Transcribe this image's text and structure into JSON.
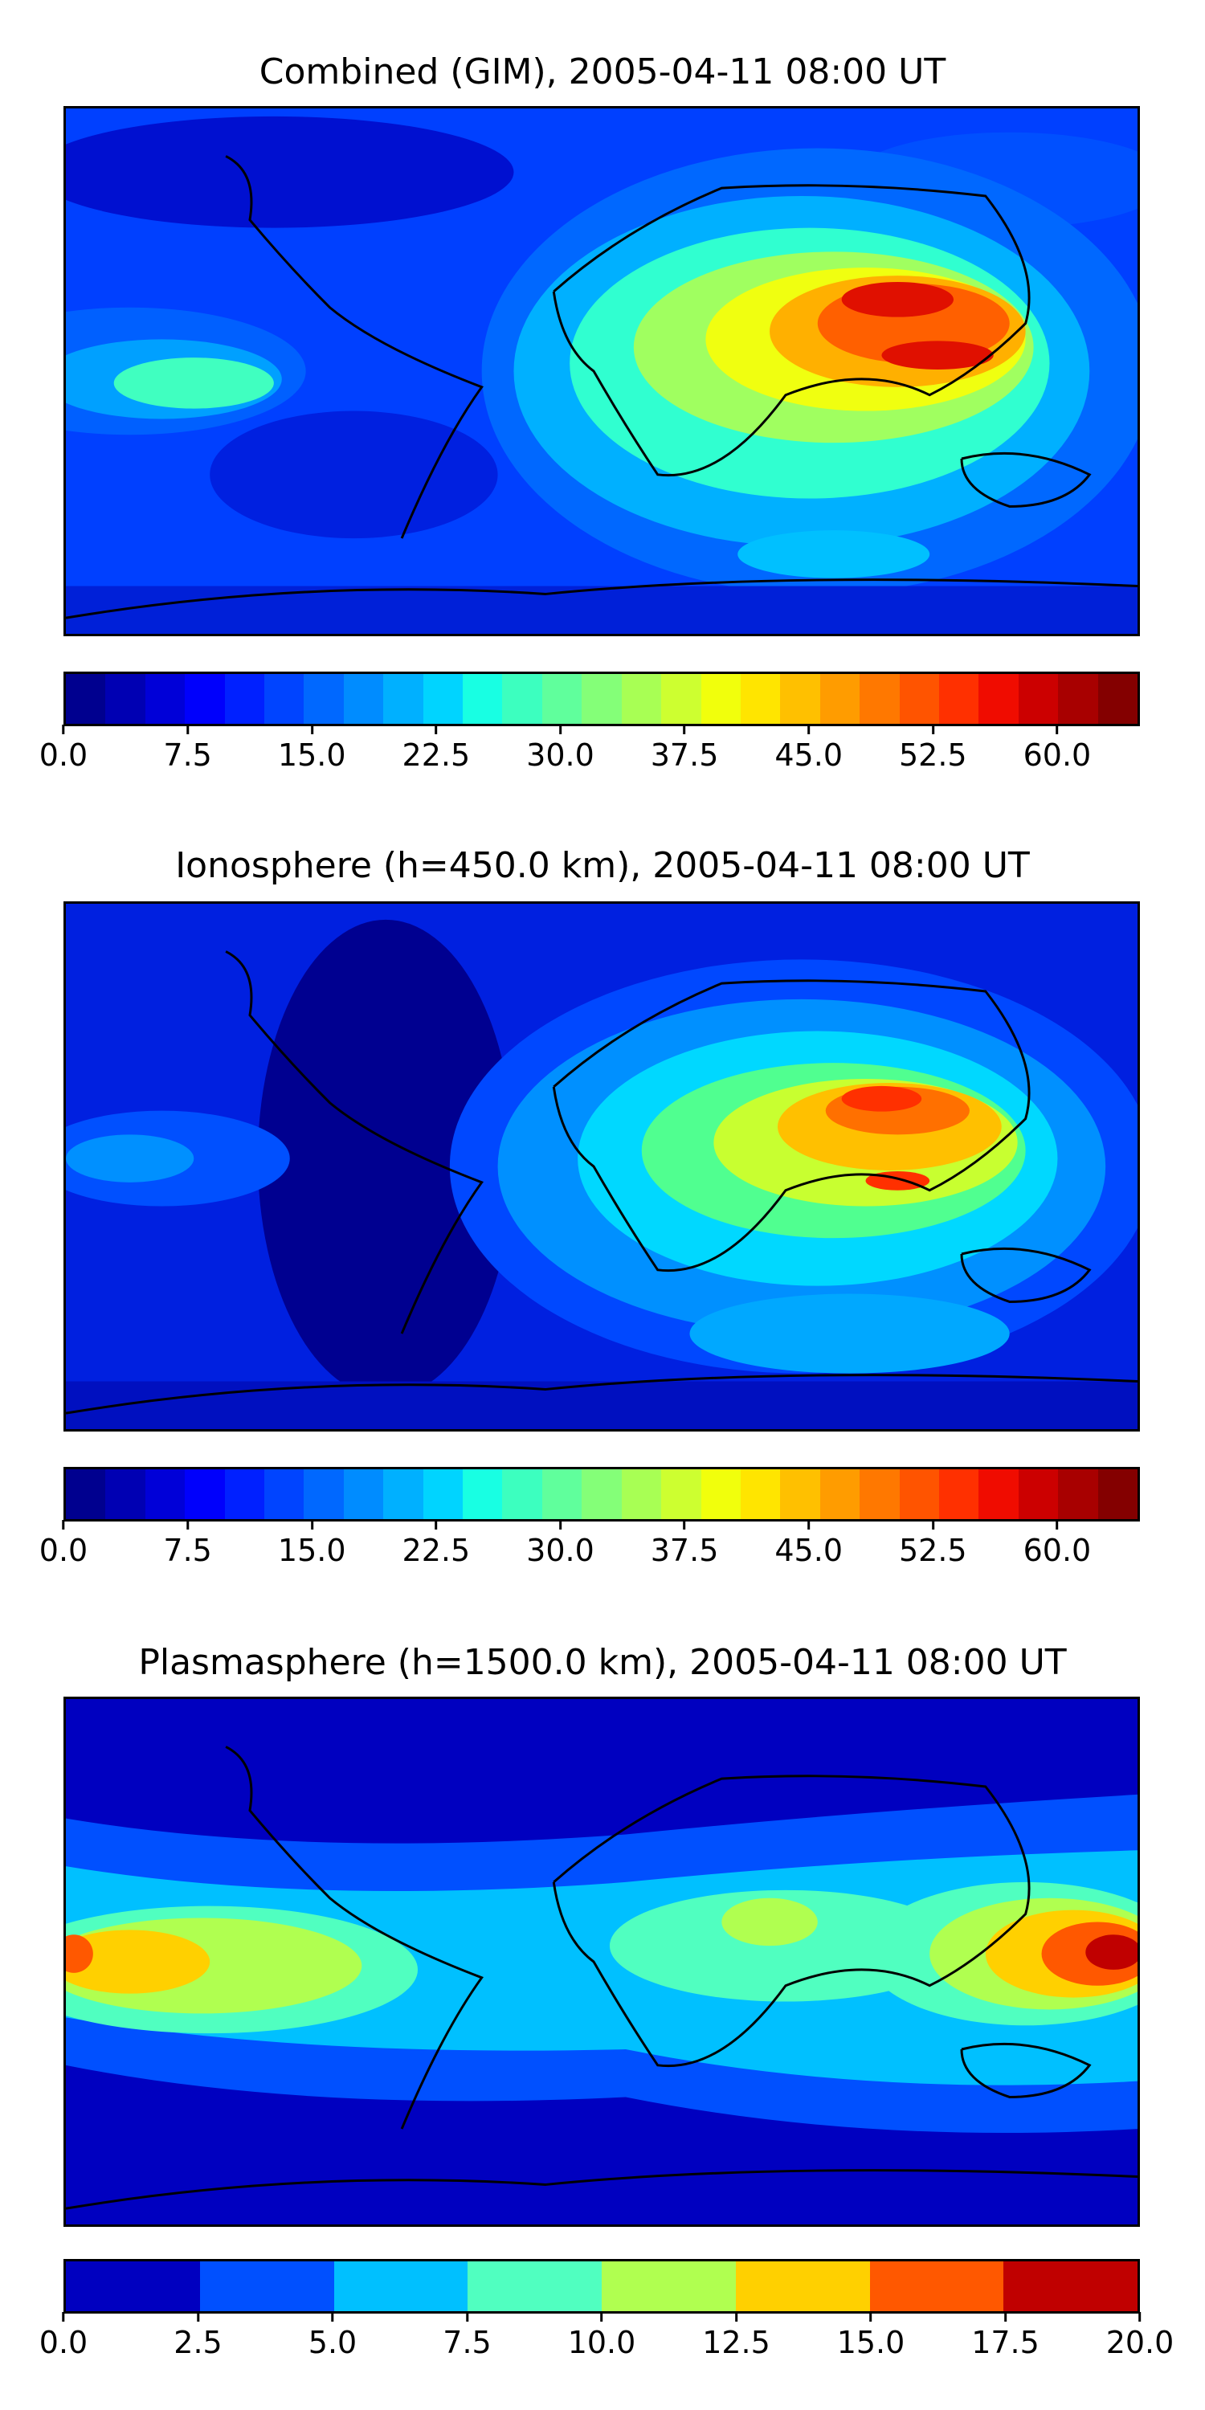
{
  "panels": [
    {
      "title": "Combined (GIM), 2005-04-11 08:00 UT",
      "colors": [
        "#00008f",
        "#0000b3",
        "#0000d8",
        "#0000fc",
        "#0020ff",
        "#0044ff",
        "#0068ff",
        "#008cff",
        "#00b0ff",
        "#00d4ff",
        "#18ffe3",
        "#3cffbf",
        "#60ff9c",
        "#84ff78",
        "#a8ff54",
        "#cdff30",
        "#f1ff0c",
        "#ffe500",
        "#ffc000",
        "#ff9c00",
        "#ff7800",
        "#ff5400",
        "#ff3000",
        "#f00c00",
        "#cc0000",
        "#a80000",
        "#840000"
      ],
      "ticks": [
        "0.0",
        "7.5",
        "15.0",
        "22.5",
        "30.0",
        "37.5",
        "45.0",
        "52.5",
        "60.0"
      ],
      "tick_values": [
        0,
        7.5,
        15,
        22.5,
        30,
        37.5,
        45,
        52.5,
        60
      ],
      "range": [
        0,
        65
      ]
    },
    {
      "title": "Ionosphere  (h=450.0 km), 2005-04-11 08:00 UT",
      "colors": [
        "#00008f",
        "#0000b3",
        "#0000d8",
        "#0000fc",
        "#0020ff",
        "#0044ff",
        "#0068ff",
        "#008cff",
        "#00b0ff",
        "#00d4ff",
        "#18ffe3",
        "#3cffbf",
        "#60ff9c",
        "#84ff78",
        "#a8ff54",
        "#cdff30",
        "#f1ff0c",
        "#ffe500",
        "#ffc000",
        "#ff9c00",
        "#ff7800",
        "#ff5400",
        "#ff3000",
        "#f00c00",
        "#cc0000",
        "#a80000",
        "#840000"
      ],
      "ticks": [
        "0.0",
        "7.5",
        "15.0",
        "22.5",
        "30.0",
        "37.5",
        "45.0",
        "52.5",
        "60.0"
      ],
      "tick_values": [
        0,
        7.5,
        15,
        22.5,
        30,
        37.5,
        45,
        52.5,
        60
      ],
      "range": [
        0,
        65
      ]
    },
    {
      "title": "Plasmasphere (h=1500.0 km), 2005-04-11 08:00 UT",
      "colors": [
        "#0000c0",
        "#0050ff",
        "#00c0ff",
        "#50ffc0",
        "#b0ff50",
        "#ffd000",
        "#ff5800",
        "#c00000"
      ],
      "ticks": [
        "0.0",
        "2.5",
        "5.0",
        "7.5",
        "10.0",
        "12.5",
        "15.0",
        "17.5",
        "20.0"
      ],
      "tick_values": [
        0,
        2.5,
        5,
        7.5,
        10,
        12.5,
        15,
        17.5,
        20
      ],
      "range": [
        0,
        20
      ]
    }
  ]
}
